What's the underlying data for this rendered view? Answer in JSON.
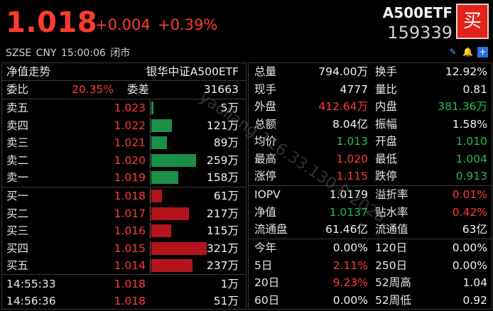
{
  "header": {
    "price": "1.018",
    "change": "+0.004",
    "change_pct": "+0.39%",
    "symbol": "A500ETF",
    "code": "159339",
    "buy_label": "买",
    "meta": "SZSE  CNY  15:00:06  闭市",
    "icons": [
      "edit-icon",
      "bell-icon",
      "add-icon"
    ]
  },
  "left": {
    "title": "净值走势",
    "fund_name": "银华中证A500ETF",
    "ratio_label": "委比",
    "ratio_value": "20.35%",
    "diff_label": "委差",
    "diff_value": "31663",
    "asks": [
      {
        "label": "卖五",
        "price": "1.023",
        "volume": "5万",
        "vol_num": 5
      },
      {
        "label": "卖四",
        "price": "1.022",
        "volume": "121万",
        "vol_num": 121
      },
      {
        "label": "卖三",
        "price": "1.021",
        "volume": "89万",
        "vol_num": 89
      },
      {
        "label": "卖二",
        "price": "1.020",
        "volume": "259万",
        "vol_num": 259
      },
      {
        "label": "卖一",
        "price": "1.019",
        "volume": "158万",
        "vol_num": 158
      }
    ],
    "bids": [
      {
        "label": "买一",
        "price": "1.018",
        "volume": "61万",
        "vol_num": 61
      },
      {
        "label": "买二",
        "price": "1.017",
        "volume": "217万",
        "vol_num": 217
      },
      {
        "label": "买三",
        "price": "1.016",
        "volume": "115万",
        "vol_num": 115
      },
      {
        "label": "买四",
        "price": "1.015",
        "volume": "321万",
        "vol_num": 321
      },
      {
        "label": "买五",
        "price": "1.014",
        "volume": "237万",
        "vol_num": 237
      }
    ],
    "trades": [
      {
        "time": "14:55:33",
        "price": "1.018",
        "volume": "1万"
      },
      {
        "time": "14:56:36",
        "price": "1.018",
        "volume": "51万"
      }
    ]
  },
  "right": {
    "stats": [
      {
        "l1": "总量",
        "v1": "794.00万",
        "c1": "white",
        "l2": "换手",
        "v2": "12.92%",
        "c2": "white"
      },
      {
        "l1": "现手",
        "v1": "4777",
        "c1": "white",
        "l2": "量比",
        "v2": "0.81",
        "c2": "white"
      },
      {
        "l1": "外盘",
        "v1": "412.64万",
        "c1": "red",
        "l2": "内盘",
        "v2": "381.36万",
        "c2": "green"
      },
      {
        "l1": "总额",
        "v1": "8.04亿",
        "c1": "white",
        "l2": "振幅",
        "v2": "1.58%",
        "c2": "white"
      },
      {
        "l1": "均价",
        "v1": "1.013",
        "c1": "green",
        "l2": "开盘",
        "v2": "1.010",
        "c2": "green"
      },
      {
        "l1": "最高",
        "v1": "1.020",
        "c1": "red",
        "l2": "最低",
        "v2": "1.004",
        "c2": "green"
      },
      {
        "l1": "涨停",
        "v1": "1.115",
        "c1": "red",
        "l2": "跌停",
        "v2": "0.913",
        "c2": "green"
      }
    ],
    "fund": [
      {
        "l1": "IOPV",
        "v1": "1.0179",
        "c1": "white",
        "l2": "溢折率",
        "v2": "0.01%",
        "c2": "red"
      },
      {
        "l1": "净值",
        "v1": "1.0137",
        "c1": "green",
        "l2": "贴水率",
        "v2": "0.42%",
        "c2": "red"
      },
      {
        "l1": "流通盘",
        "v1": "61.46亿",
        "c1": "white",
        "l2": "流通值",
        "v2": "63亿",
        "c2": "white"
      }
    ],
    "perf": [
      {
        "l1": "今年",
        "v1": "0.00%",
        "c1": "white",
        "l2": "120日",
        "v2": "0.00%",
        "c2": "white"
      },
      {
        "l1": "5日",
        "v1": "2.11%",
        "c1": "red",
        "l2": "250日",
        "v2": "0.00%",
        "c2": "white"
      },
      {
        "l1": "20日",
        "v1": "9.23%",
        "c1": "red",
        "l2": "52周高",
        "v2": "1.04",
        "c2": "white"
      },
      {
        "l1": "60日",
        "v1": "0.00%",
        "c1": "white",
        "l2": "52周低",
        "v2": "0.92",
        "c2": "white"
      }
    ]
  },
  "watermark": "yaoliang 116.33.130.8 2025..."
}
